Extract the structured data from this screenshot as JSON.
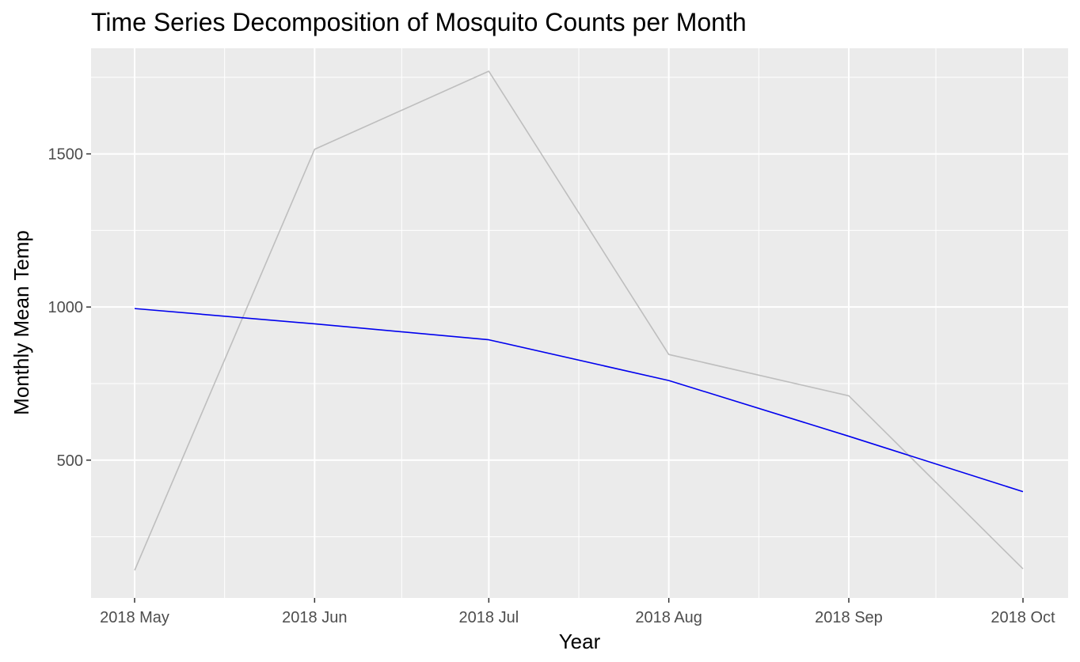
{
  "chart_data": {
    "type": "line",
    "title": "Time Series Decomposition of Mosquito Counts per Month",
    "xlabel": "Year",
    "ylabel": "Monthly Mean Temp",
    "x": [
      "2018 May",
      "2018 Jun",
      "2018 Jul",
      "2018 Aug",
      "2018 Sep",
      "2018 Oct"
    ],
    "x_dates": [
      "2018-05-01",
      "2018-06-01",
      "2018-07-01",
      "2018-08-01",
      "2018-09-01",
      "2018-10-01"
    ],
    "series": [
      {
        "values": [
          140,
          1515,
          1770,
          845,
          710,
          145
        ],
        "color": "#bebebe"
      },
      {
        "values": [
          995,
          945,
          893,
          760,
          578,
          397
        ],
        "color": "#0000ee"
      }
    ],
    "y_ticks": [
      500,
      1000,
      1500
    ],
    "ylim": [
      50,
      1845
    ],
    "grid": true,
    "panel_background": "#ebebeb",
    "grid_color": "#ffffff"
  }
}
